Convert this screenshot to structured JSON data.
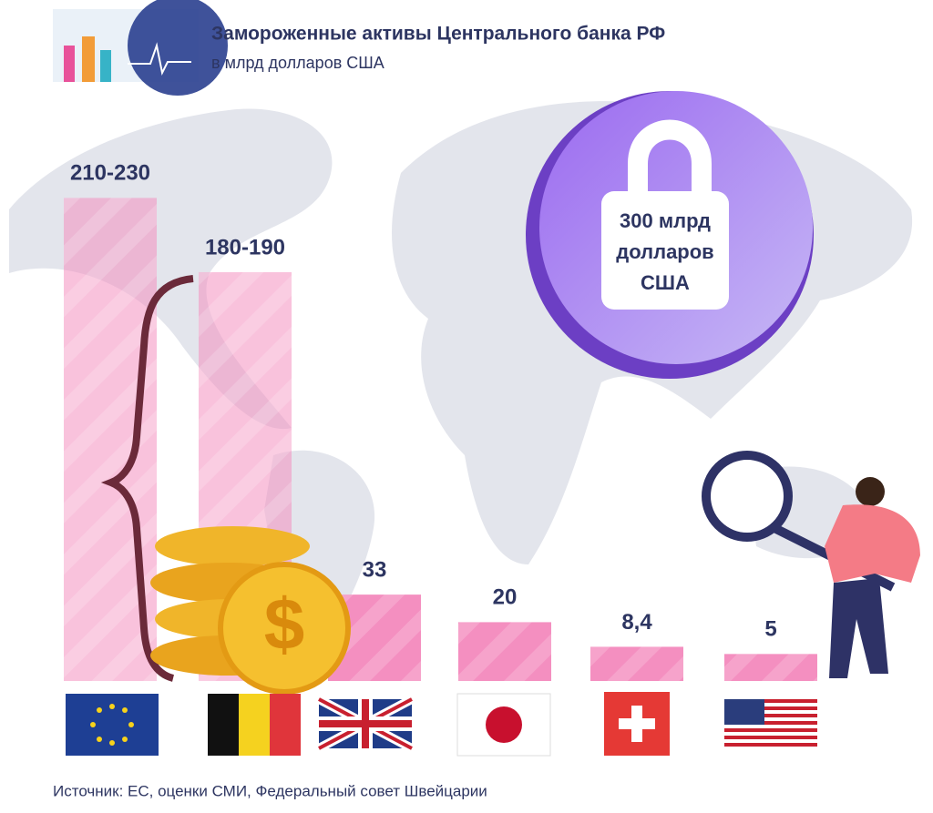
{
  "chart_data": {
    "type": "bar",
    "title": "Замороженные активы Центрального банка РФ",
    "subtitle": "в млрд долларов США",
    "annotation": [
      "300 млрд",
      "долларов",
      "США"
    ],
    "source": "Источник: ЕС, оценки СМИ, Федеральный совет Швейцарии",
    "values": [
      [
        210,
        230
      ],
      [
        180,
        190
      ],
      33,
      20,
      8.4,
      5
    ],
    "value_labels": [
      "210-230",
      "180-190",
      "33",
      "20",
      "8,4",
      "5"
    ],
    "color": "#f48fc0"
  }
}
